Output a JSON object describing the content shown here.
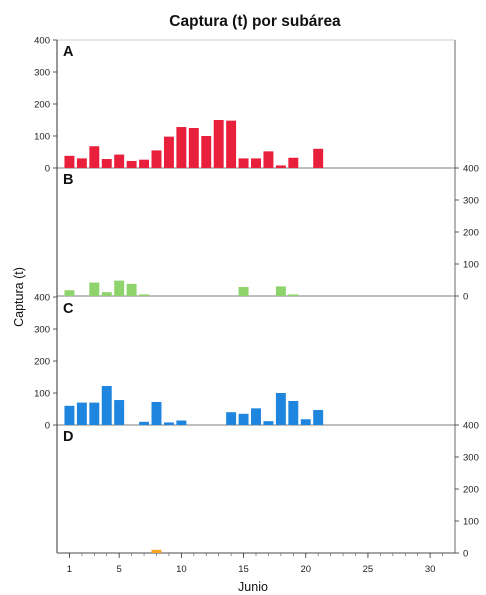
{
  "chart_data": {
    "type": "bar",
    "title": "Captura (t) por subárea",
    "ylabel": "Captura (t)",
    "xlabel": "Junio",
    "xlim": [
      0,
      32
    ],
    "x_ticks": [
      1,
      5,
      10,
      15,
      20,
      25,
      30
    ],
    "ylim": [
      0,
      400
    ],
    "y_ticks": [
      0,
      100,
      200,
      300,
      400
    ],
    "panels": [
      {
        "name": "A",
        "y_axis_side": "left",
        "color": "#e8203c",
        "x": [
          1,
          2,
          3,
          4,
          5,
          6,
          7,
          8,
          9,
          10,
          11,
          12,
          13,
          14,
          15,
          16,
          17,
          18,
          19,
          21
        ],
        "values": [
          38,
          30,
          68,
          28,
          42,
          22,
          26,
          55,
          98,
          128,
          125,
          100,
          150,
          148,
          30,
          30,
          52,
          8,
          32,
          60
        ]
      },
      {
        "name": "B",
        "y_axis_side": "right",
        "color": "#8ed36b",
        "x": [
          1,
          3,
          4,
          5,
          6,
          7,
          15,
          18,
          19
        ],
        "values": [
          18,
          42,
          12,
          48,
          38,
          5,
          28,
          30,
          5
        ]
      },
      {
        "name": "C",
        "y_axis_side": "left",
        "color": "#1f86e0",
        "x": [
          1,
          2,
          3,
          4,
          5,
          7,
          8,
          9,
          10,
          14,
          15,
          16,
          17,
          18,
          19,
          20,
          21
        ],
        "values": [
          60,
          70,
          70,
          122,
          78,
          10,
          72,
          8,
          14,
          40,
          35,
          52,
          12,
          100,
          75,
          18,
          47
        ]
      },
      {
        "name": "D",
        "y_axis_side": "right",
        "color": "#f5a623",
        "x": [
          8
        ],
        "values": [
          10
        ]
      }
    ]
  }
}
